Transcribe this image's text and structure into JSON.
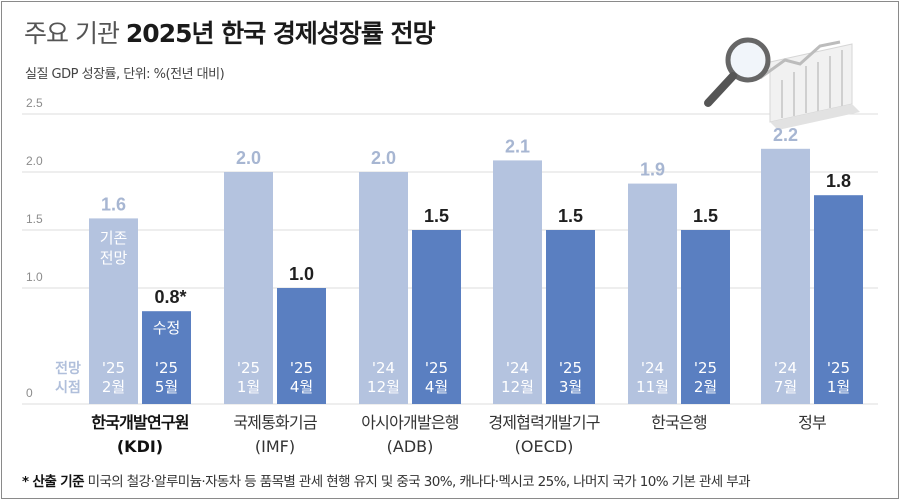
{
  "title": {
    "prefix": "주요 기관",
    "main": "2025년 한국 경제성장률 전망"
  },
  "subtitle": "실질 GDP 성장률, 단위: %(전년 대비)",
  "legend": {
    "base_label_line1": "기존",
    "base_label_line2": "전망",
    "revised_label": "수정",
    "period_label_line1": "전망",
    "period_label_line2": "시점"
  },
  "footnote": {
    "prefix": "* 산출 기준",
    "text": "미국의 철강·알루미늄·자동차 등 품목별 관세 현행 유지 및 중국 30%, 캐나다·멕시코 25%, 나머지 국가 10% 기본 관세 부과"
  },
  "colors": {
    "base_bar": "#b4c3df",
    "revised_bar": "#5a7fc1",
    "base_text": "#a7b6d2",
    "revised_text": "#1f1f1f",
    "grid": "#dddddd"
  },
  "icon": "magnifier-chart-icon",
  "chart_data": {
    "type": "bar",
    "ylim": [
      0,
      2.5
    ],
    "yticks": [
      "0",
      "1.0",
      "1.5",
      "2.0",
      "2.5"
    ],
    "ytick_values": [
      0,
      1.0,
      1.5,
      2.0,
      2.5
    ],
    "grid": true,
    "categories": [
      {
        "line1": "한국개발연구원",
        "line2": "(KDI)",
        "bold": true
      },
      {
        "line1": "국제통화기금",
        "line2": "(IMF)",
        "bold": false
      },
      {
        "line1": "아시아개발은행",
        "line2": "(ADB)",
        "bold": false
      },
      {
        "line1": "경제협력개발기구",
        "line2": "(OECD)",
        "bold": false
      },
      {
        "line1": "한국은행",
        "line2": "",
        "bold": false
      },
      {
        "line1": "정부",
        "line2": "",
        "bold": false
      }
    ],
    "series": [
      {
        "values": [
          1.6,
          2.0,
          2.0,
          2.1,
          1.9,
          2.2
        ],
        "labels": [
          "1.6",
          "2.0",
          "2.0",
          "2.1",
          "1.9",
          "2.2"
        ],
        "dates_line1": [
          "'25",
          "'25",
          "'24",
          "'24",
          "'24",
          "'24"
        ],
        "dates_line2": [
          "2월",
          "1월",
          "12월",
          "12월",
          "11월",
          "7월"
        ]
      },
      {
        "values": [
          0.8,
          1.0,
          1.5,
          1.5,
          1.5,
          1.8
        ],
        "labels": [
          "0.8*",
          "1.0",
          "1.5",
          "1.5",
          "1.5",
          "1.8"
        ],
        "dates_line1": [
          "'25",
          "'25",
          "'25",
          "'25",
          "'25",
          "'25"
        ],
        "dates_line2": [
          "5월",
          "4월",
          "4월",
          "3월",
          "2월",
          "1월"
        ]
      }
    ]
  }
}
